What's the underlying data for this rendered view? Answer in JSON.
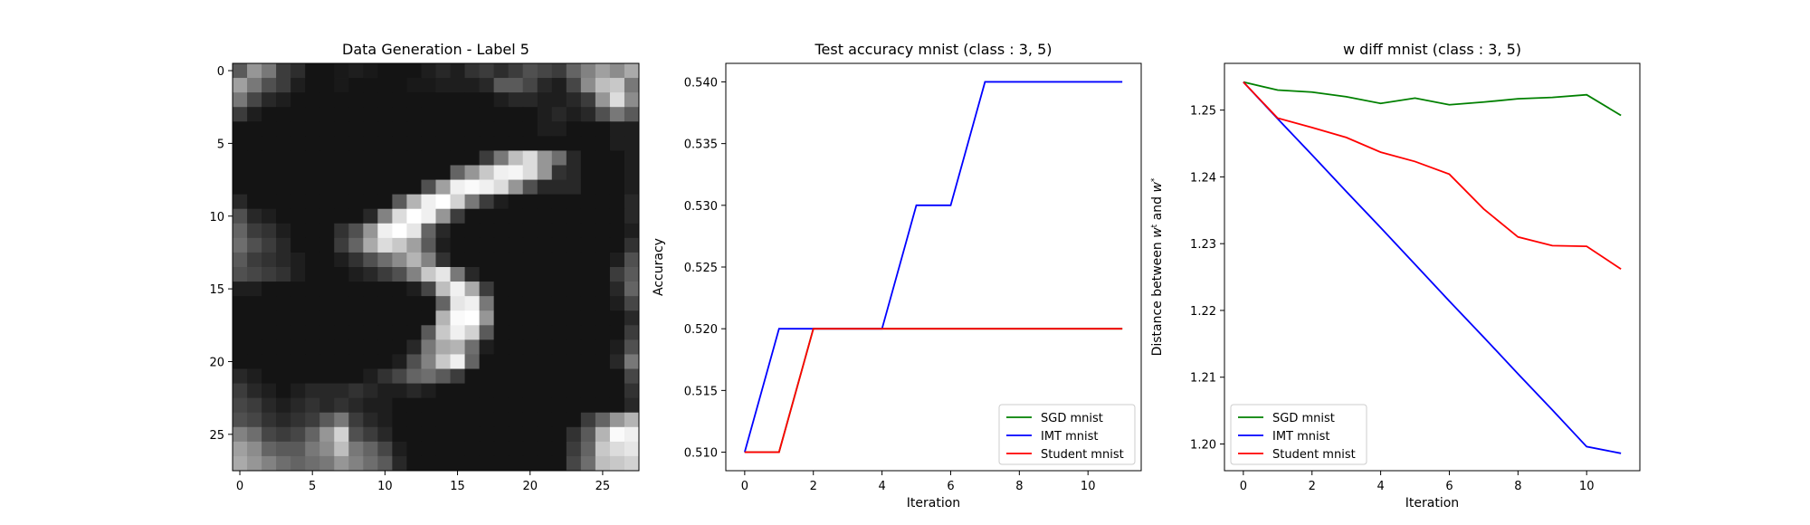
{
  "charts": [
    {
      "type": "heatmap",
      "title": "Data Generation - Label 5",
      "xticks": [
        0,
        5,
        10,
        15,
        20,
        25
      ],
      "yticks": [
        0,
        5,
        10,
        15,
        20,
        25
      ],
      "xlim": [
        -0.5,
        27.5
      ],
      "ylim": [
        27.5,
        -0.5
      ],
      "colormap": "gray",
      "value_range": [
        0,
        255
      ],
      "rows": 28,
      "cols": 28,
      "pixels": [
        [
          90,
          150,
          120,
          60,
          45,
          20,
          20,
          25,
          30,
          25,
          20,
          20,
          20,
          30,
          40,
          30,
          50,
          60,
          45,
          60,
          80,
          70,
          60,
          100,
          130,
          160,
          140,
          170
        ],
        [
          160,
          120,
          80,
          60,
          30,
          20,
          20,
          25,
          20,
          20,
          20,
          20,
          25,
          25,
          30,
          30,
          30,
          40,
          90,
          90,
          70,
          40,
          30,
          70,
          140,
          190,
          200,
          120
        ],
        [
          120,
          70,
          40,
          30,
          20,
          20,
          20,
          20,
          20,
          20,
          20,
          20,
          20,
          20,
          20,
          20,
          20,
          20,
          30,
          40,
          40,
          30,
          30,
          40,
          60,
          150,
          220,
          140
        ],
        [
          60,
          30,
          20,
          20,
          20,
          20,
          20,
          20,
          20,
          20,
          20,
          20,
          20,
          20,
          20,
          20,
          20,
          20,
          20,
          20,
          20,
          30,
          40,
          30,
          40,
          80,
          120,
          90
        ],
        [
          20,
          20,
          20,
          20,
          20,
          20,
          20,
          20,
          20,
          20,
          20,
          20,
          20,
          20,
          20,
          20,
          20,
          20,
          20,
          20,
          20,
          30,
          30,
          20,
          20,
          20,
          30,
          30
        ],
        [
          20,
          20,
          20,
          20,
          20,
          20,
          20,
          20,
          20,
          20,
          20,
          20,
          20,
          20,
          20,
          20,
          20,
          20,
          20,
          20,
          20,
          20,
          20,
          20,
          20,
          20,
          30,
          30
        ],
        [
          20,
          20,
          20,
          20,
          20,
          20,
          20,
          20,
          20,
          20,
          20,
          20,
          20,
          20,
          20,
          20,
          20,
          60,
          120,
          190,
          220,
          150,
          110,
          40,
          20,
          20,
          20,
          30
        ],
        [
          20,
          20,
          20,
          20,
          20,
          20,
          20,
          20,
          20,
          20,
          20,
          20,
          20,
          20,
          20,
          100,
          150,
          200,
          240,
          245,
          220,
          150,
          50,
          40,
          20,
          20,
          20,
          30
        ],
        [
          20,
          20,
          20,
          20,
          20,
          20,
          20,
          20,
          20,
          20,
          20,
          20,
          20,
          80,
          160,
          240,
          250,
          240,
          220,
          150,
          80,
          40,
          40,
          40,
          20,
          20,
          20,
          30
        ],
        [
          40,
          20,
          20,
          20,
          20,
          20,
          20,
          20,
          20,
          20,
          20,
          90,
          180,
          240,
          255,
          210,
          120,
          60,
          30,
          20,
          20,
          20,
          20,
          20,
          20,
          20,
          20,
          40
        ],
        [
          80,
          40,
          30,
          20,
          20,
          20,
          20,
          20,
          20,
          40,
          130,
          220,
          255,
          240,
          150,
          60,
          20,
          20,
          20,
          20,
          20,
          20,
          20,
          20,
          20,
          20,
          20,
          40
        ],
        [
          100,
          60,
          50,
          30,
          20,
          20,
          20,
          50,
          80,
          150,
          240,
          255,
          230,
          100,
          40,
          20,
          20,
          20,
          20,
          20,
          20,
          20,
          20,
          20,
          20,
          20,
          20,
          30
        ],
        [
          110,
          80,
          60,
          40,
          20,
          20,
          20,
          60,
          100,
          170,
          220,
          200,
          160,
          90,
          30,
          20,
          20,
          20,
          20,
          20,
          20,
          20,
          20,
          20,
          20,
          20,
          20,
          50
        ],
        [
          90,
          60,
          50,
          40,
          30,
          20,
          20,
          30,
          50,
          80,
          110,
          140,
          180,
          130,
          50,
          20,
          20,
          20,
          20,
          20,
          20,
          20,
          20,
          20,
          20,
          20,
          30,
          80
        ],
        [
          80,
          70,
          60,
          50,
          30,
          20,
          20,
          20,
          30,
          40,
          60,
          80,
          130,
          200,
          230,
          120,
          40,
          20,
          20,
          20,
          20,
          20,
          20,
          20,
          20,
          20,
          60,
          90
        ],
        [
          30,
          30,
          20,
          20,
          20,
          20,
          20,
          20,
          20,
          20,
          20,
          20,
          30,
          70,
          190,
          240,
          170,
          60,
          20,
          20,
          20,
          20,
          20,
          20,
          20,
          20,
          40,
          100
        ],
        [
          20,
          20,
          20,
          20,
          20,
          20,
          20,
          20,
          20,
          20,
          20,
          20,
          20,
          20,
          100,
          230,
          240,
          120,
          20,
          20,
          20,
          20,
          20,
          20,
          20,
          20,
          30,
          70
        ],
        [
          20,
          20,
          20,
          20,
          20,
          20,
          20,
          20,
          20,
          20,
          20,
          20,
          20,
          20,
          180,
          250,
          255,
          150,
          20,
          20,
          20,
          20,
          20,
          20,
          20,
          20,
          20,
          40
        ],
        [
          20,
          20,
          20,
          20,
          20,
          20,
          20,
          20,
          20,
          20,
          20,
          20,
          20,
          90,
          200,
          240,
          210,
          90,
          20,
          20,
          20,
          20,
          20,
          20,
          20,
          20,
          20,
          60
        ],
        [
          20,
          20,
          20,
          20,
          20,
          20,
          20,
          20,
          20,
          20,
          20,
          20,
          40,
          120,
          170,
          180,
          110,
          30,
          20,
          20,
          20,
          20,
          20,
          20,
          20,
          20,
          30,
          80
        ],
        [
          20,
          20,
          20,
          20,
          20,
          20,
          20,
          20,
          20,
          20,
          20,
          30,
          80,
          130,
          200,
          240,
          100,
          20,
          20,
          20,
          20,
          20,
          20,
          20,
          20,
          20,
          40,
          120
        ],
        [
          40,
          30,
          20,
          20,
          20,
          20,
          20,
          20,
          20,
          30,
          50,
          70,
          100,
          110,
          90,
          60,
          20,
          20,
          20,
          20,
          20,
          20,
          20,
          20,
          20,
          20,
          20,
          70
        ],
        [
          60,
          40,
          30,
          20,
          30,
          40,
          40,
          40,
          50,
          40,
          30,
          30,
          40,
          30,
          20,
          20,
          20,
          20,
          20,
          20,
          20,
          20,
          20,
          20,
          20,
          20,
          20,
          50
        ],
        [
          70,
          60,
          40,
          30,
          40,
          50,
          40,
          50,
          40,
          30,
          30,
          20,
          20,
          20,
          20,
          20,
          20,
          20,
          20,
          20,
          20,
          20,
          20,
          20,
          20,
          20,
          20,
          40
        ],
        [
          80,
          70,
          50,
          40,
          50,
          60,
          90,
          120,
          60,
          40,
          30,
          20,
          20,
          20,
          20,
          20,
          20,
          20,
          20,
          20,
          20,
          20,
          20,
          20,
          60,
          100,
          150,
          180
        ],
        [
          130,
          110,
          70,
          60,
          70,
          100,
          150,
          210,
          80,
          60,
          40,
          20,
          20,
          20,
          20,
          20,
          20,
          20,
          20,
          20,
          20,
          20,
          20,
          50,
          90,
          180,
          250,
          240
        ],
        [
          160,
          140,
          100,
          90,
          90,
          120,
          140,
          190,
          120,
          100,
          70,
          30,
          20,
          20,
          20,
          20,
          20,
          20,
          20,
          20,
          20,
          20,
          20,
          60,
          100,
          200,
          220,
          230
        ],
        [
          170,
          150,
          130,
          110,
          100,
          110,
          120,
          150,
          130,
          110,
          90,
          40,
          20,
          20,
          20,
          20,
          20,
          20,
          20,
          20,
          20,
          20,
          20,
          70,
          110,
          190,
          200,
          210
        ]
      ]
    },
    {
      "type": "line",
      "title": "Test accuracy mnist (class : 3, 5)",
      "xlabel": "Iteration",
      "ylabel": "Accuracy",
      "xlim": [
        -0.55,
        11.55
      ],
      "ylim": [
        0.5085,
        0.5415
      ],
      "xticks": [
        0,
        2,
        4,
        6,
        8,
        10
      ],
      "yticks": [
        0.51,
        0.515,
        0.52,
        0.525,
        0.53,
        0.535,
        0.54
      ],
      "ytick_labels": [
        "0.510",
        "0.515",
        "0.520",
        "0.525",
        "0.530",
        "0.535",
        "0.540"
      ],
      "legend_position": "lower-right",
      "x": [
        0,
        1,
        2,
        3,
        4,
        5,
        6,
        7,
        8,
        9,
        10,
        11
      ],
      "series": [
        {
          "name": "SGD mnist",
          "color": "#008000",
          "values": [
            0.51,
            0.51,
            0.52,
            0.52,
            0.52,
            0.52,
            0.52,
            0.52,
            0.52,
            0.52,
            0.52,
            0.52
          ]
        },
        {
          "name": "IMT mnist",
          "color": "#0000ff",
          "values": [
            0.51,
            0.52,
            0.52,
            0.52,
            0.52,
            0.53,
            0.53,
            0.54,
            0.54,
            0.54,
            0.54,
            0.54
          ]
        },
        {
          "name": "Student mnist",
          "color": "#ff0000",
          "values": [
            0.51,
            0.51,
            0.52,
            0.52,
            0.52,
            0.52,
            0.52,
            0.52,
            0.52,
            0.52,
            0.52,
            0.52
          ]
        }
      ]
    },
    {
      "type": "line",
      "title": "w diff mnist (class : 3, 5)",
      "xlabel": "Iteration",
      "ylabel": "Distance between w^t and w^*",
      "ylabel_parts": {
        "prefix": "Distance between ",
        "var1": "w",
        "sup1": "t",
        "mid": " and ",
        "var2": "w",
        "sup2": "*"
      },
      "xlim": [
        -0.55,
        11.55
      ],
      "ylim": [
        1.196,
        1.257
      ],
      "xticks": [
        0,
        2,
        4,
        6,
        8,
        10
      ],
      "yticks": [
        1.2,
        1.21,
        1.22,
        1.23,
        1.24,
        1.25
      ],
      "ytick_labels": [
        "1.20",
        "1.21",
        "1.22",
        "1.23",
        "1.24",
        "1.25"
      ],
      "legend_position": "lower-left",
      "x": [
        0,
        1,
        2,
        3,
        4,
        5,
        6,
        7,
        8,
        9,
        10,
        11
      ],
      "series": [
        {
          "name": "SGD mnist",
          "color": "#008000",
          "values": [
            1.2542,
            1.253,
            1.2527,
            1.252,
            1.251,
            1.2518,
            1.2508,
            1.2512,
            1.2517,
            1.2519,
            1.2523,
            1.2492
          ]
        },
        {
          "name": "IMT mnist",
          "color": "#0000ff",
          "values": [
            1.2542,
            1.2487,
            1.2433,
            1.2378,
            1.2324,
            1.2269,
            1.2214,
            1.216,
            1.2105,
            1.2051,
            1.1996,
            1.1986
          ]
        },
        {
          "name": "Student mnist",
          "color": "#ff0000",
          "values": [
            1.2542,
            1.2488,
            1.2474,
            1.2459,
            1.2437,
            1.2423,
            1.2404,
            1.2352,
            1.231,
            1.2297,
            1.2296,
            1.2262
          ]
        }
      ]
    }
  ]
}
